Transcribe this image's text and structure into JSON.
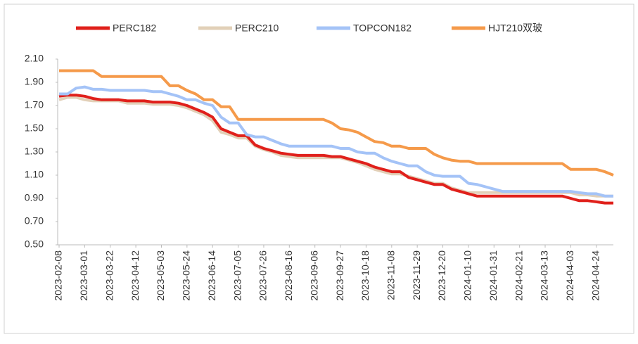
{
  "chart_data": {
    "type": "line",
    "categories": [
      "2023-02-08",
      null,
      null,
      "2023-03-01",
      null,
      null,
      "2023-03-22",
      null,
      null,
      "2023-04-12",
      null,
      null,
      "2023-05-03",
      null,
      null,
      "2023-05-24",
      null,
      null,
      "2023-06-14",
      null,
      null,
      "2023-07-05",
      null,
      null,
      "2023-07-26",
      null,
      null,
      "2023-08-16",
      null,
      null,
      "2023-09-06",
      null,
      null,
      "2023-09-27",
      null,
      null,
      "2023-10-18",
      null,
      null,
      "2023-11-08",
      null,
      null,
      "2023-11-29",
      null,
      null,
      "2023-12-20",
      null,
      null,
      "2024-01-10",
      null,
      null,
      "2024-01-31",
      null,
      null,
      "2024-02-21",
      null,
      null,
      "2024-03-13",
      null,
      null,
      "2024-04-03",
      null,
      null,
      "2024-04-24",
      null,
      null
    ],
    "series": [
      {
        "name": "PERC182",
        "color": "#e0201b",
        "values": [
          1.78,
          1.79,
          1.79,
          1.78,
          1.76,
          1.75,
          1.75,
          1.75,
          1.74,
          1.74,
          1.74,
          1.73,
          1.73,
          1.73,
          1.72,
          1.7,
          1.67,
          1.64,
          1.6,
          1.5,
          1.47,
          1.44,
          1.44,
          1.36,
          1.33,
          1.31,
          1.29,
          1.28,
          1.27,
          1.27,
          1.27,
          1.27,
          1.26,
          1.26,
          1.24,
          1.22,
          1.2,
          1.17,
          1.15,
          1.13,
          1.13,
          1.08,
          1.06,
          1.04,
          1.02,
          1.02,
          0.98,
          0.96,
          0.94,
          0.92,
          0.92,
          0.92,
          0.92,
          0.92,
          0.92,
          0.92,
          0.92,
          0.92,
          0.92,
          0.92,
          0.9,
          0.88,
          0.88,
          0.87,
          0.86,
          0.86
        ]
      },
      {
        "name": "PERC210",
        "color": "#e2d0b8",
        "values": [
          1.75,
          1.77,
          1.77,
          1.75,
          1.74,
          1.74,
          1.74,
          1.74,
          1.72,
          1.72,
          1.72,
          1.71,
          1.71,
          1.71,
          1.7,
          1.68,
          1.65,
          1.62,
          1.57,
          1.47,
          1.45,
          1.42,
          1.42,
          1.35,
          1.32,
          1.3,
          1.27,
          1.26,
          1.25,
          1.25,
          1.25,
          1.25,
          1.25,
          1.25,
          1.23,
          1.21,
          1.18,
          1.15,
          1.13,
          1.11,
          1.11,
          1.09,
          1.07,
          1.05,
          1.03,
          1.03,
          0.99,
          0.97,
          0.95,
          0.95,
          0.95,
          0.95,
          0.95,
          0.95,
          0.95,
          0.95,
          0.95,
          0.95,
          0.95,
          0.95,
          0.95,
          0.93,
          0.93,
          0.92,
          0.92,
          0.92
        ]
      },
      {
        "name": "TOPCON182",
        "color": "#a4c3f7",
        "values": [
          1.8,
          1.8,
          1.85,
          1.86,
          1.84,
          1.84,
          1.83,
          1.83,
          1.83,
          1.83,
          1.83,
          1.82,
          1.82,
          1.8,
          1.78,
          1.75,
          1.75,
          1.72,
          1.7,
          1.6,
          1.55,
          1.55,
          1.45,
          1.43,
          1.43,
          1.4,
          1.37,
          1.35,
          1.35,
          1.35,
          1.35,
          1.35,
          1.35,
          1.33,
          1.33,
          1.3,
          1.29,
          1.29,
          1.25,
          1.22,
          1.2,
          1.18,
          1.18,
          1.13,
          1.1,
          1.09,
          1.09,
          1.09,
          1.03,
          1.02,
          1.0,
          0.98,
          0.96,
          0.96,
          0.96,
          0.96,
          0.96,
          0.96,
          0.96,
          0.96,
          0.96,
          0.95,
          0.94,
          0.94,
          0.92,
          0.92
        ]
      },
      {
        "name": "HJT210双玻",
        "color": "#f59a4a",
        "values": [
          2.0,
          2.0,
          2.0,
          2.0,
          2.0,
          1.95,
          1.95,
          1.95,
          1.95,
          1.95,
          1.95,
          1.95,
          1.95,
          1.87,
          1.87,
          1.83,
          1.8,
          1.75,
          1.75,
          1.69,
          1.69,
          1.58,
          1.58,
          1.58,
          1.58,
          1.58,
          1.58,
          1.58,
          1.58,
          1.58,
          1.58,
          1.58,
          1.55,
          1.5,
          1.49,
          1.47,
          1.43,
          1.39,
          1.38,
          1.35,
          1.35,
          1.33,
          1.33,
          1.33,
          1.28,
          1.25,
          1.23,
          1.22,
          1.22,
          1.2,
          1.2,
          1.2,
          1.2,
          1.2,
          1.2,
          1.2,
          1.2,
          1.2,
          1.2,
          1.2,
          1.15,
          1.15,
          1.15,
          1.15,
          1.13,
          1.1
        ]
      }
    ],
    "ylim": [
      0.5,
      2.1
    ],
    "yticks": [
      {
        "value": 0.5,
        "label": "0.50"
      },
      {
        "value": 0.7,
        "label": "0.70"
      },
      {
        "value": 0.9,
        "label": "0.90"
      },
      {
        "value": 1.1,
        "label": "1.10"
      },
      {
        "value": 1.3,
        "label": "1.30"
      },
      {
        "value": 1.5,
        "label": "1.50"
      },
      {
        "value": 1.7,
        "label": "1.70"
      },
      {
        "value": 1.9,
        "label": "1.90"
      },
      {
        "value": 2.1,
        "label": "2.10"
      }
    ],
    "grid": false,
    "legend": "top"
  }
}
